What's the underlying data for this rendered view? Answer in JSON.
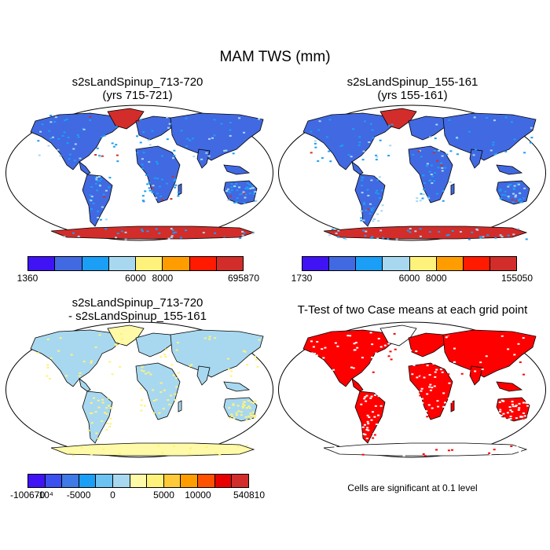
{
  "title": "MAM TWS (mm)",
  "panels": [
    {
      "id": "case1",
      "title_line1": "s2sLandSpinup_713-720",
      "title_line2": "(yrs 715-721)",
      "colorbar_colors": [
        "#4013f5",
        "#4169e1",
        "#1b9ef5",
        "#a8d8ef",
        "#fff27c",
        "#ff9d00",
        "#ff1a00",
        "#d22d2a"
      ],
      "colorbar_labels": [
        "1360",
        "6000",
        "8000",
        "695870"
      ]
    },
    {
      "id": "case2",
      "title_line1": "s2sLandSpinup_155-161",
      "title_line2": "(yrs 155-161)",
      "colorbar_colors": [
        "#4013f5",
        "#4169e1",
        "#1b9ef5",
        "#a8d8ef",
        "#fff27c",
        "#ff9d00",
        "#ff1a00",
        "#d22d2a"
      ],
      "colorbar_labels": [
        "1730",
        "6000",
        "8000",
        "155050"
      ]
    },
    {
      "id": "diff",
      "title_line1": "s2sLandSpinup_713-720",
      "title_line2": "- s2sLandSpinup_155-161",
      "colorbar_colors": [
        "#4013f5",
        "#3b50ee",
        "#3f7ae6",
        "#1b9ef5",
        "#6cc2f0",
        "#a8d8ef",
        "#fffaa8",
        "#fff27c",
        "#ffca3a",
        "#ff9d00",
        "#ff5200",
        "#e80000",
        "#d22d2a"
      ],
      "colorbar_labels": [
        "-100670",
        "-10⁴",
        "-5000",
        "0",
        "5000",
        "10000",
        "540810"
      ]
    },
    {
      "id": "ttest",
      "title_line1": "T-Test of two Case means at each grid point",
      "note": "Cells are significant at 0.1 level"
    }
  ],
  "palette": {
    "land_case1": "#4169e1",
    "land_case2": "#4169e1",
    "land_diff": "#a8d8ef",
    "land_ttest": "#ff0000",
    "antarctica_case": "#d22d2a",
    "ocean": "#ffffff",
    "outline": "#000000"
  }
}
